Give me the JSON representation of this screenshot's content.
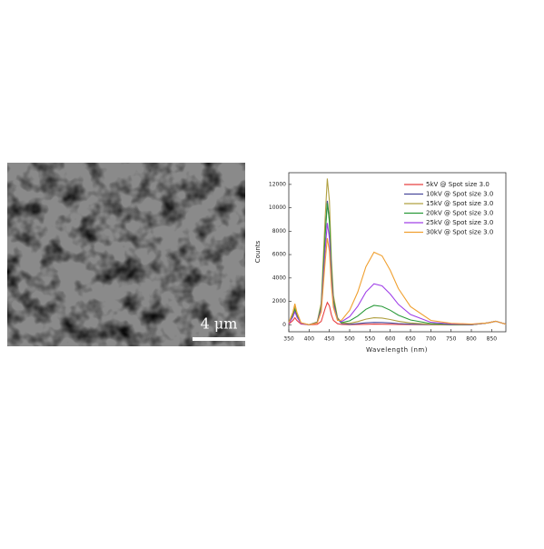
{
  "image": {
    "scale_bar": "4 μm"
  },
  "chart_data": {
    "type": "line",
    "xlabel": "Wavelength (nm)",
    "ylabel": "Counts",
    "x": [
      350,
      360,
      365,
      370,
      380,
      400,
      420,
      430,
      440,
      445,
      450,
      455,
      460,
      470,
      480,
      500,
      520,
      540,
      560,
      580,
      600,
      620,
      650,
      700,
      750,
      800,
      840,
      860,
      885
    ],
    "xlim": [
      350,
      885
    ],
    "xticks": [
      350,
      400,
      450,
      500,
      550,
      600,
      650,
      700,
      750,
      800,
      850
    ],
    "ylim": [
      -600,
      13000
    ],
    "yticks": [
      0,
      2000,
      4000,
      6000,
      8000,
      10000,
      12000
    ],
    "legend": "top-right",
    "series": [
      {
        "name": "5kV @ Spot size 3.0",
        "color": "#e84040",
        "values": [
          60,
          360,
          600,
          360,
          60,
          0,
          38,
          285,
          1425,
          1900,
          1615,
          855,
          380,
          95,
          22,
          10,
          22,
          40,
          50,
          48,
          38,
          25,
          12,
          3,
          1,
          0,
          150,
          300,
          50
        ]
      },
      {
        "name": "10kV @ Spot size 3.0",
        "color": "#4a4a9c",
        "values": [
          120,
          720,
          1200,
          720,
          120,
          0,
          212,
          1590,
          7950,
          10600,
          9010,
          4770,
          2120,
          530,
          116,
          40,
          90,
          160,
          200,
          190,
          150,
          100,
          50,
          12,
          4,
          2,
          150,
          300,
          50
        ]
      },
      {
        "name": "15kV @ Spot size 3.0",
        "color": "#b0a040",
        "values": [
          150,
          900,
          1500,
          900,
          150,
          0,
          250,
          1875,
          9375,
          12500,
          10625,
          5625,
          2500,
          625,
          155,
          120,
          270,
          480,
          600,
          570,
          450,
          300,
          150,
          36,
          12,
          6,
          150,
          300,
          50
        ]
      },
      {
        "name": "20kV @ Spot size 3.0",
        "color": "#2a9a3a",
        "values": [
          130,
          780,
          1300,
          780,
          130,
          0,
          208,
          1560,
          7800,
          10400,
          8840,
          4680,
          2080,
          520,
          187,
          330,
          743,
          1320,
          1650,
          1568,
          1238,
          825,
          413,
          99,
          33,
          17,
          150,
          300,
          50
        ]
      },
      {
        "name": "25kV @ Spot size 3.0",
        "color": "#a040e8",
        "values": [
          110,
          660,
          1100,
          660,
          110,
          0,
          174,
          1305,
          6525,
          8700,
          7395,
          3915,
          1740,
          435,
          262,
          700,
          1575,
          2800,
          3500,
          3325,
          2625,
          1750,
          875,
          210,
          70,
          35,
          150,
          300,
          50
        ]
      },
      {
        "name": "30kV @ Spot size 3.0",
        "color": "#f0a030",
        "values": [
          180,
          1080,
          1800,
          1080,
          180,
          0,
          148,
          1110,
          5550,
          7400,
          6290,
          3330,
          1480,
          370,
          384,
          1240,
          2790,
          4960,
          6200,
          5890,
          4650,
          3100,
          1550,
          372,
          124,
          62,
          150,
          300,
          50
        ]
      }
    ]
  }
}
